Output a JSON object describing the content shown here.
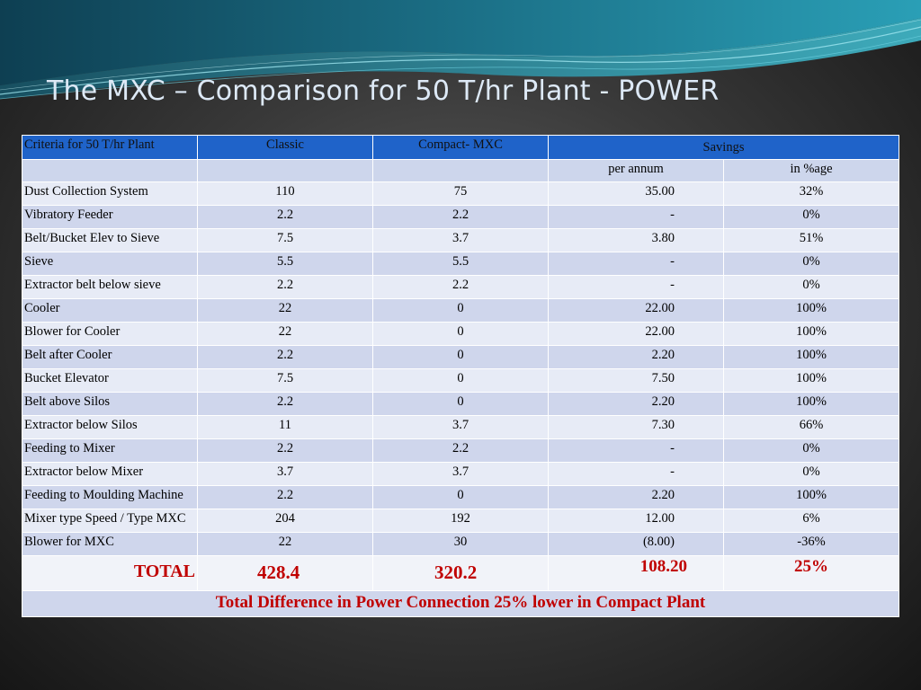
{
  "title": "The MXC – Comparison for 50 T/hr Plant - POWER",
  "header": {
    "criteria": "Criteria for 50 T/hr Plant",
    "classic": "Classic",
    "compact": "Compact- MXC",
    "savings": "Savings"
  },
  "subheader": {
    "per_annum": "per annum",
    "pct": "in %age"
  },
  "rows": [
    {
      "criteria": "Dust Collection System",
      "classic": "110",
      "compact": "75",
      "per_annum": "35.00",
      "pct": "32%"
    },
    {
      "criteria": "Vibratory Feeder",
      "classic": "2.2",
      "compact": "2.2",
      "per_annum": "-",
      "pct": "0%"
    },
    {
      "criteria": "Belt/Bucket Elev to Sieve",
      "classic": "7.5",
      "compact": "3.7",
      "per_annum": "3.80",
      "pct": "51%"
    },
    {
      "criteria": "Sieve",
      "classic": "5.5",
      "compact": "5.5",
      "per_annum": "-",
      "pct": "0%"
    },
    {
      "criteria": "Extractor belt below sieve",
      "classic": "2.2",
      "compact": "2.2",
      "per_annum": "-",
      "pct": "0%"
    },
    {
      "criteria": "Cooler",
      "classic": "22",
      "compact": "0",
      "per_annum": "22.00",
      "pct": "100%"
    },
    {
      "criteria": "Blower for  Cooler",
      "classic": "22",
      "compact": "0",
      "per_annum": "22.00",
      "pct": "100%"
    },
    {
      "criteria": "Belt after Cooler",
      "classic": "2.2",
      "compact": "0",
      "per_annum": "2.20",
      "pct": "100%"
    },
    {
      "criteria": "Bucket Elevator",
      "classic": "7.5",
      "compact": "0",
      "per_annum": "7.50",
      "pct": "100%"
    },
    {
      "criteria": "Belt above Silos",
      "classic": "2.2",
      "compact": "0",
      "per_annum": "2.20",
      "pct": "100%"
    },
    {
      "criteria": "Extractor below Silos",
      "classic": "11",
      "compact": "3.7",
      "per_annum": "7.30",
      "pct": "66%"
    },
    {
      "criteria": "Feeding to Mixer",
      "classic": "2.2",
      "compact": "2.2",
      "per_annum": "-",
      "pct": "0%"
    },
    {
      "criteria": "Extractor below Mixer",
      "classic": "3.7",
      "compact": "3.7",
      "per_annum": "-",
      "pct": "0%"
    },
    {
      "criteria": "Feeding to Moulding Machine",
      "classic": "2.2",
      "compact": "0",
      "per_annum": "2.20",
      "pct": "100%"
    },
    {
      "criteria": "Mixer type Speed / Type MXC",
      "classic": "204",
      "compact": "192",
      "per_annum": "12.00",
      "pct": "6%"
    },
    {
      "criteria": "Blower for MXC",
      "classic": "22",
      "compact": "30",
      "per_annum": "(8.00)",
      "pct": "-36%"
    }
  ],
  "total": {
    "label": "TOTAL",
    "classic": "428.4",
    "compact": "320.2",
    "per_annum": "108.20",
    "pct": "25%"
  },
  "footer": "Total Difference in Power Connection 25% lower in Compact Plant",
  "colors": {
    "header_blue": "#1f63c9",
    "row_light": "#e7ebf6",
    "row_dark": "#cfd6ec",
    "accent_red": "#c00000",
    "title_text": "#dde9f6"
  }
}
